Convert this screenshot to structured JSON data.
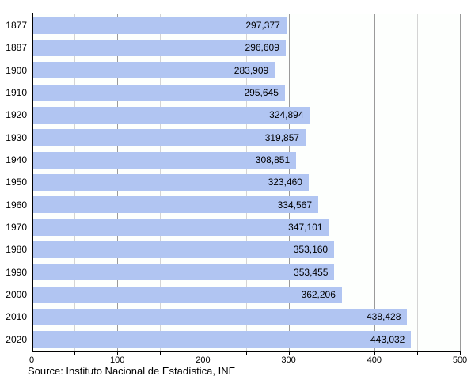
{
  "chart_data": {
    "type": "bar",
    "orientation": "horizontal",
    "title": "",
    "xlabel": "",
    "ylabel": "",
    "categories": [
      "1877",
      "1887",
      "1900",
      "1910",
      "1920",
      "1930",
      "1940",
      "1950",
      "1960",
      "1970",
      "1980",
      "1990",
      "2000",
      "2010",
      "2020"
    ],
    "values": [
      297377,
      296609,
      283909,
      295645,
      324894,
      319857,
      308851,
      323460,
      334567,
      347101,
      353160,
      353455,
      362206,
      438428,
      443032
    ],
    "value_labels": [
      "297,377",
      "296,609",
      "283,909",
      "295,645",
      "324,894",
      "319,857",
      "308,851",
      "323,460",
      "334,567",
      "347,101",
      "353,160",
      "353,455",
      "362,206",
      "438,428",
      "443,032"
    ],
    "xlim": [
      0,
      500
    ],
    "axis_unit_divisor": 1000,
    "x_tick_step": 50,
    "x_label_step": 100,
    "x_tick_labels": [
      "0",
      "100",
      "200",
      "300",
      "400",
      "500"
    ],
    "grid": true,
    "legend": null,
    "colors": {
      "bar": "#b1c5f2",
      "gridline_minor": "#d4d4d4",
      "gridline_major": "#9a9a9a",
      "axis": "#000000",
      "text": "#000000"
    }
  },
  "footer": {
    "source": "Source: Instituto Nacional de Estadística, INE"
  }
}
